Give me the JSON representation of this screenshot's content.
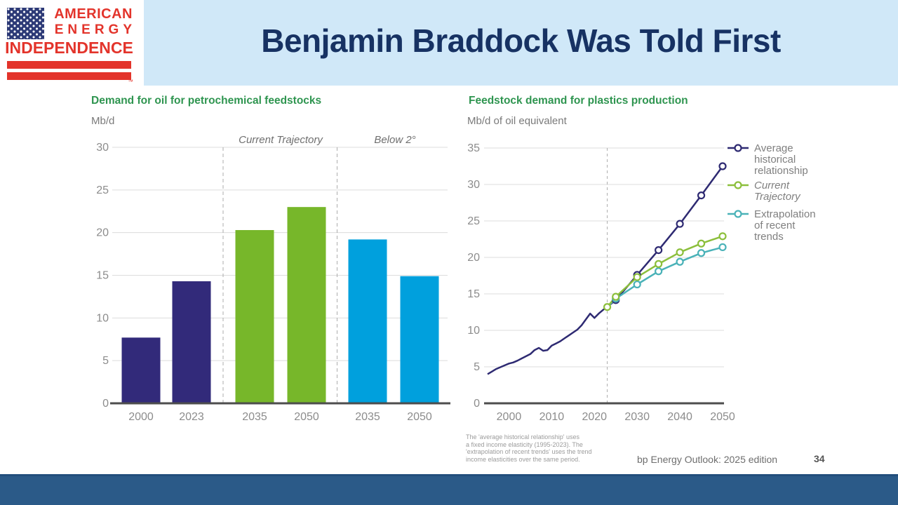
{
  "slide": {
    "title": "Benjamin Braddock Was Told First",
    "footer_source": "bp Energy Outlook: 2025 edition",
    "page_number": "34"
  },
  "logo": {
    "line1": "AMERICAN",
    "line2": "ENERGY",
    "line3": "INDEPENDENCE",
    "trademark": "™"
  },
  "colors": {
    "title_navy": "#173263",
    "band_light_blue": "#d0e8f8",
    "heading_green": "#2f9550",
    "logo_red": "#e3342b",
    "bar_navy": "#322a7a",
    "bar_green": "#77b72a",
    "bar_blue": "#00a0dd",
    "line_navy": "#2e2a72",
    "line_green": "#8cbf3c",
    "line_teal": "#4ab2b8",
    "bottom_bar_blue": "#2b5a88"
  },
  "footnote": {
    "lines": [
      "The 'average historical relationship' uses",
      "a fixed income elasticity (1995-2023). The",
      "'extrapolation of recent trends' uses the trend",
      "income elasticities over the same period."
    ]
  },
  "chart_data": [
    {
      "type": "bar",
      "title": "Demand for oil for petrochemical feedstocks",
      "unit_label": "Mb/d",
      "ylim": [
        0,
        30
      ],
      "ytick_step": 5,
      "grid": true,
      "section_labels": [
        "Current Trajectory",
        "Below 2°"
      ],
      "categories": [
        "2000",
        "2023",
        "2035",
        "2050",
        "2035",
        "2050"
      ],
      "values": [
        7.7,
        14.3,
        20.3,
        23.0,
        19.2,
        14.9
      ],
      "bar_colors": [
        "#322a7a",
        "#322a7a",
        "#77b72a",
        "#77b72a",
        "#00a0dd",
        "#00a0dd"
      ],
      "groups": [
        "history",
        "history",
        "Current Trajectory",
        "Current Trajectory",
        "Below 2°",
        "Below 2°"
      ]
    },
    {
      "type": "line",
      "title": "Feedstock demand for plastics production",
      "unit_label": "Mb/d of oil equivalent",
      "ylim": [
        0,
        35
      ],
      "ytick_step": 5,
      "xlim": [
        1995,
        2050
      ],
      "xticks": [
        2000,
        2010,
        2020,
        2030,
        2040,
        2050
      ],
      "grid": true,
      "divider_year": 2023,
      "legend_position": "right",
      "series": [
        {
          "name": "history",
          "color": "#2e2a72",
          "markers": false,
          "points": [
            [
              1995,
              4.0
            ],
            [
              1996,
              4.35
            ],
            [
              1997,
              4.7
            ],
            [
              1998,
              4.95
            ],
            [
              1999,
              5.2
            ],
            [
              2000,
              5.45
            ],
            [
              2001,
              5.6
            ],
            [
              2002,
              5.85
            ],
            [
              2003,
              6.15
            ],
            [
              2004,
              6.45
            ],
            [
              2005,
              6.75
            ],
            [
              2006,
              7.3
            ],
            [
              2007,
              7.6
            ],
            [
              2008,
              7.2
            ],
            [
              2009,
              7.3
            ],
            [
              2010,
              7.9
            ],
            [
              2011,
              8.2
            ],
            [
              2012,
              8.5
            ],
            [
              2013,
              8.9
            ],
            [
              2014,
              9.3
            ],
            [
              2015,
              9.7
            ],
            [
              2016,
              10.1
            ],
            [
              2017,
              10.7
            ],
            [
              2018,
              11.5
            ],
            [
              2019,
              12.3
            ],
            [
              2020,
              11.7
            ],
            [
              2021,
              12.3
            ],
            [
              2022,
              12.8
            ],
            [
              2023,
              13.2
            ]
          ]
        },
        {
          "name": "Average historical relationship",
          "color": "#2e2a72",
          "markers": true,
          "marker_skip_first": true,
          "points": [
            [
              2023,
              13.2
            ],
            [
              2025,
              14.15
            ],
            [
              2030,
              17.6
            ],
            [
              2035,
              21.0
            ],
            [
              2040,
              24.6
            ],
            [
              2045,
              28.5
            ],
            [
              2050,
              32.5
            ]
          ]
        },
        {
          "name": "Extrapolation of recent trends",
          "color": "#4ab2b8",
          "markers": true,
          "marker_skip_first": true,
          "points": [
            [
              2023,
              13.2
            ],
            [
              2025,
              14.35
            ],
            [
              2030,
              16.3
            ],
            [
              2035,
              18.1
            ],
            [
              2040,
              19.4
            ],
            [
              2045,
              20.6
            ],
            [
              2050,
              21.4
            ]
          ]
        },
        {
          "name": "Current Trajectory",
          "color": "#8cbf3c",
          "markers": true,
          "marker_skip_first": false,
          "points": [
            [
              2023,
              13.2
            ],
            [
              2025,
              14.6
            ],
            [
              2030,
              17.3
            ],
            [
              2035,
              19.1
            ],
            [
              2040,
              20.7
            ],
            [
              2045,
              21.9
            ],
            [
              2050,
              22.9
            ]
          ]
        }
      ],
      "legend": [
        {
          "name": "Average historical relationship",
          "lines": [
            "Average",
            "historical",
            "relationship"
          ],
          "color": "#2e2a72",
          "italic": false
        },
        {
          "name": "Current Trajectory",
          "lines": [
            "Current",
            "Trajectory"
          ],
          "color": "#8cbf3c",
          "italic": true
        },
        {
          "name": "Extrapolation of recent trends",
          "lines": [
            "Extrapolation",
            "of recent",
            "trends"
          ],
          "color": "#4ab2b8",
          "italic": false
        }
      ]
    }
  ]
}
